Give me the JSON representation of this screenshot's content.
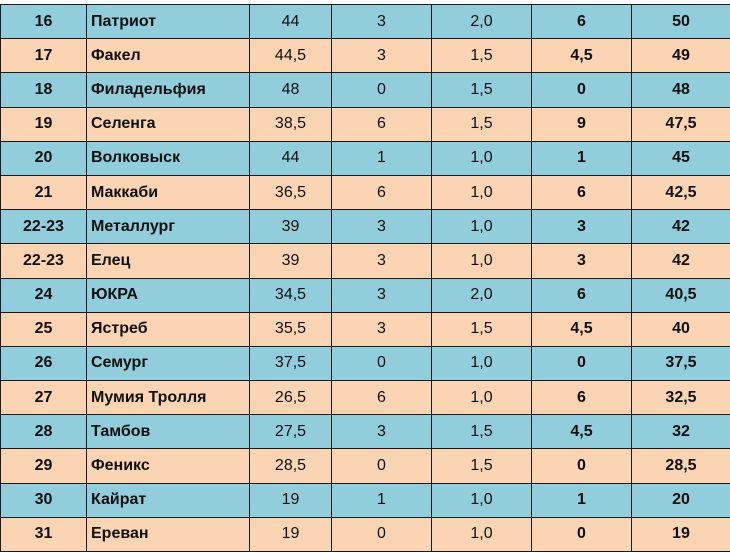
{
  "colors": {
    "row_blue": "#92cddc",
    "row_peach": "#fbd4b4",
    "border": "#1a1a1a"
  },
  "rows": [
    {
      "rank": "16",
      "team": "Патриот",
      "c3": "44",
      "c4": "3",
      "c5": "2,0",
      "c6": "6",
      "total": "50",
      "color": "blue"
    },
    {
      "rank": "17",
      "team": "Факел",
      "c3": "44,5",
      "c4": "3",
      "c5": "1,5",
      "c6": "4,5",
      "total": "49",
      "color": "peach"
    },
    {
      "rank": "18",
      "team": "Филадельфия",
      "c3": "48",
      "c4": "0",
      "c5": "1,5",
      "c6": "0",
      "total": "48",
      "color": "blue"
    },
    {
      "rank": "19",
      "team": "Селенга",
      "c3": "38,5",
      "c4": "6",
      "c5": "1,5",
      "c6": "9",
      "total": "47,5",
      "color": "peach"
    },
    {
      "rank": "20",
      "team": "Волковыск",
      "c3": "44",
      "c4": "1",
      "c5": "1,0",
      "c6": "1",
      "total": "45",
      "color": "blue"
    },
    {
      "rank": "21",
      "team": "Маккаби",
      "c3": "36,5",
      "c4": "6",
      "c5": "1,0",
      "c6": "6",
      "total": "42,5",
      "color": "peach"
    },
    {
      "rank": "22-23",
      "team": "Металлург",
      "c3": "39",
      "c4": "3",
      "c5": "1,0",
      "c6": "3",
      "total": "42",
      "color": "blue"
    },
    {
      "rank": "22-23",
      "team": "Елец",
      "c3": "39",
      "c4": "3",
      "c5": "1,0",
      "c6": "3",
      "total": "42",
      "color": "peach"
    },
    {
      "rank": "24",
      "team": "ЮКРА",
      "c3": "34,5",
      "c4": "3",
      "c5": "2,0",
      "c6": "6",
      "total": "40,5",
      "color": "blue"
    },
    {
      "rank": "25",
      "team": "Ястреб",
      "c3": "35,5",
      "c4": "3",
      "c5": "1,5",
      "c6": "4,5",
      "total": "40",
      "color": "peach"
    },
    {
      "rank": "26",
      "team": "Семург",
      "c3": "37,5",
      "c4": "0",
      "c5": "1,0",
      "c6": "0",
      "total": "37,5",
      "color": "blue"
    },
    {
      "rank": "27",
      "team": "Мумия Тролля",
      "c3": "26,5",
      "c4": "6",
      "c5": "1,0",
      "c6": "6",
      "total": "32,5",
      "color": "peach"
    },
    {
      "rank": "28",
      "team": "Тамбов",
      "c3": "27,5",
      "c4": "3",
      "c5": "1,5",
      "c6": "4,5",
      "total": "32",
      "color": "blue"
    },
    {
      "rank": "29",
      "team": "Феникс",
      "c3": "28,5",
      "c4": "0",
      "c5": "1,5",
      "c6": "0",
      "total": "28,5",
      "color": "peach"
    },
    {
      "rank": "30",
      "team": "Кайрат",
      "c3": "19",
      "c4": "1",
      "c5": "1,0",
      "c6": "1",
      "total": "20",
      "color": "blue"
    },
    {
      "rank": "31",
      "team": "Ереван",
      "c3": "19",
      "c4": "0",
      "c5": "1,0",
      "c6": "0",
      "total": "19",
      "color": "peach"
    }
  ]
}
